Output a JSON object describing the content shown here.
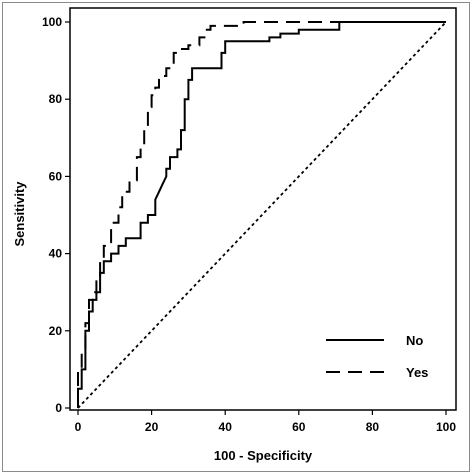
{
  "chart_data": {
    "type": "line",
    "xlabel": "100 - Specificity",
    "ylabel": "Sensitivity",
    "xlim": [
      0,
      100
    ],
    "ylim": [
      0,
      100
    ],
    "xticks": [
      0,
      20,
      40,
      60,
      80,
      100
    ],
    "yticks": [
      0,
      20,
      40,
      60,
      80,
      100
    ],
    "grid": false,
    "legend_position": "bottom-right",
    "series": [
      {
        "name": "No",
        "style": "solid",
        "x": [
          0,
          0,
          1,
          1,
          2,
          2,
          3,
          3,
          4,
          4,
          5,
          5,
          6,
          6,
          7,
          7,
          9,
          9,
          11,
          11,
          13,
          13,
          17,
          17,
          19,
          19,
          21,
          21,
          22,
          23,
          24,
          24,
          25,
          25,
          27,
          27,
          28,
          28,
          29,
          29,
          30,
          30,
          31,
          31,
          39,
          39,
          40,
          40,
          44,
          44,
          52,
          52,
          55,
          55,
          60,
          60,
          65,
          65,
          71,
          71,
          100
        ],
        "y": [
          0,
          5,
          5,
          10,
          10,
          20,
          20,
          25,
          25,
          28,
          28,
          30,
          30,
          35,
          35,
          38,
          38,
          40,
          40,
          42,
          42,
          44,
          44,
          48,
          48,
          50,
          50,
          54,
          56,
          58,
          60,
          62,
          62,
          65,
          65,
          67,
          67,
          72,
          72,
          80,
          80,
          85,
          85,
          88,
          88,
          92,
          92,
          95,
          95,
          95,
          95,
          96,
          96,
          97,
          97,
          98,
          98,
          98,
          98,
          100,
          100
        ]
      },
      {
        "name": "Yes",
        "style": "dashed",
        "x": [
          0,
          0,
          1,
          1,
          2,
          2,
          3,
          3,
          4,
          4,
          5,
          5,
          6,
          6,
          7,
          7,
          9,
          9,
          11,
          11,
          12,
          12,
          14,
          14,
          16,
          16,
          17,
          17,
          18,
          18,
          19,
          19,
          20,
          20,
          21,
          21,
          22,
          22,
          23,
          23,
          24,
          24,
          26,
          26,
          28,
          28,
          30,
          30,
          33,
          33,
          35,
          35,
          36,
          36,
          38,
          38,
          45,
          45,
          100
        ],
        "y": [
          0,
          10,
          10,
          15,
          15,
          22,
          22,
          28,
          28,
          30,
          30,
          34,
          34,
          38,
          38,
          42,
          42,
          48,
          48,
          52,
          52,
          56,
          56,
          59,
          59,
          65,
          65,
          68,
          68,
          72,
          72,
          78,
          78,
          81,
          81,
          83,
          83,
          85,
          85,
          86,
          86,
          88,
          88,
          92,
          92,
          93,
          93,
          94,
          94,
          96,
          96,
          98,
          98,
          99,
          99,
          99,
          99,
          100,
          100
        ]
      },
      {
        "name": "",
        "style": "dotted",
        "x": [
          0,
          100
        ],
        "y": [
          0,
          100
        ]
      }
    ]
  }
}
